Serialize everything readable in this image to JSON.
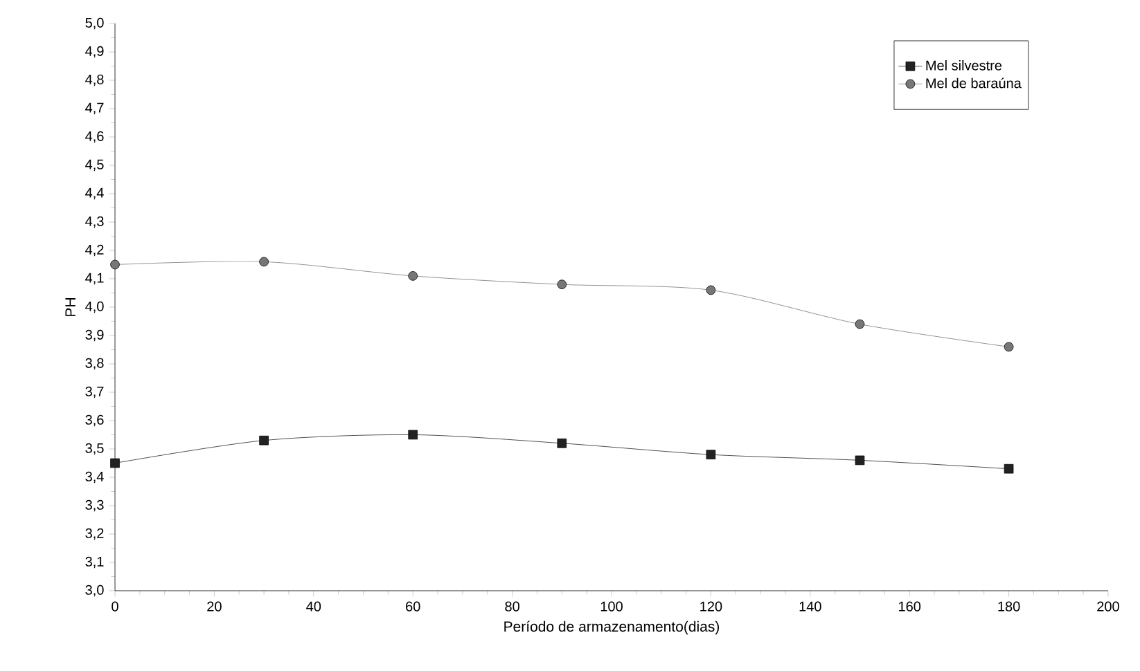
{
  "chart_data": {
    "type": "line",
    "xlabel": "Período de armazenamento(dias)",
    "ylabel": "PH",
    "xlim": [
      0,
      200
    ],
    "xticks": [
      0,
      20,
      40,
      60,
      80,
      100,
      120,
      140,
      160,
      180,
      200
    ],
    "ylim": [
      3.0,
      5.0
    ],
    "yticks": [
      {
        "value": 3.0,
        "label": "3,0"
      },
      {
        "value": 3.1,
        "label": "3,1"
      },
      {
        "value": 3.2,
        "label": "3,2"
      },
      {
        "value": 3.3,
        "label": "3,3"
      },
      {
        "value": 3.4,
        "label": "3,4"
      },
      {
        "value": 3.5,
        "label": "3,5"
      },
      {
        "value": 3.6,
        "label": "3,6"
      },
      {
        "value": 3.7,
        "label": "3,7"
      },
      {
        "value": 3.8,
        "label": "3,8"
      },
      {
        "value": 3.9,
        "label": "3,9"
      },
      {
        "value": 4.0,
        "label": "4,0"
      },
      {
        "value": 4.1,
        "label": "4,1"
      },
      {
        "value": 4.2,
        "label": "4,2"
      },
      {
        "value": 4.3,
        "label": "4,3"
      },
      {
        "value": 4.4,
        "label": "4,4"
      },
      {
        "value": 4.5,
        "label": "4,5"
      },
      {
        "value": 4.6,
        "label": "4,6"
      },
      {
        "value": 4.7,
        "label": "4,7"
      },
      {
        "value": 4.8,
        "label": "4,8"
      },
      {
        "value": 4.9,
        "label": "4,9"
      },
      {
        "value": 5.0,
        "label": "5,0"
      }
    ],
    "x": [
      0,
      30,
      60,
      90,
      120,
      150,
      180
    ],
    "legend": "top right",
    "series": [
      {
        "name": "Mel silvestre",
        "color": "#222222",
        "marker": "square",
        "values": [
          3.45,
          3.53,
          3.55,
          3.52,
          3.48,
          3.46,
          3.43
        ]
      },
      {
        "name": "Mel de baraúna",
        "color": "#777777",
        "marker": "circle",
        "values": [
          4.15,
          4.16,
          4.11,
          4.08,
          4.06,
          3.94,
          3.86
        ]
      }
    ]
  }
}
